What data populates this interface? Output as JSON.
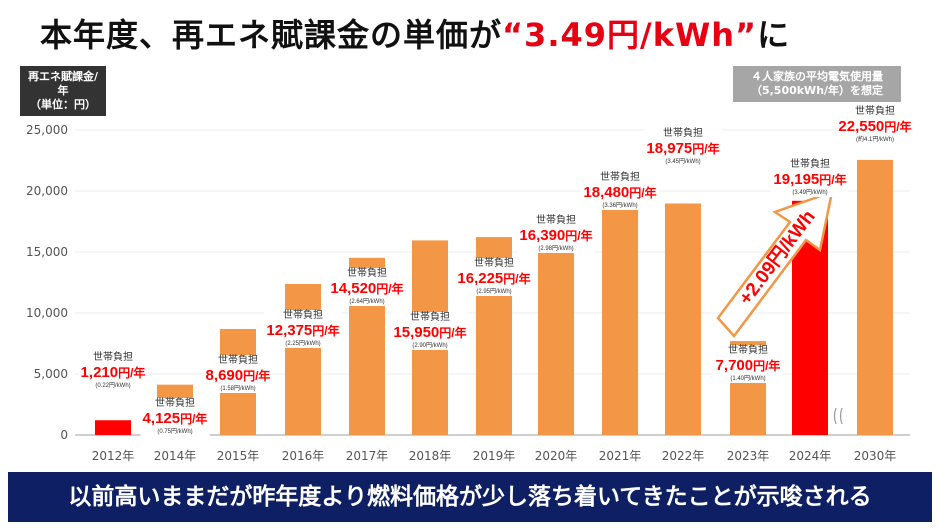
{
  "title": {
    "prefix": "本年度、再エネ賦課金の単価が",
    "highlight": "“3.49円/kWh”",
    "suffix": "に"
  },
  "unit_box": {
    "line1": "再エネ賦課金/年",
    "line2": "（単位：円）"
  },
  "assumption_box": {
    "line1": "４人家族の平均電気使用量",
    "line2": "（5,500kWh/年）を想定"
  },
  "arrow_label": "+2.09円/kWh",
  "footer": "以前高いままだが昨年度より燃料価格が少し落ち着いてきたことが示唆される",
  "colors": {
    "bar": "#f39646",
    "highlight_bar": "#ff0000",
    "label": "#ff0000",
    "footer_bg": "#0e1f63"
  },
  "chart_data": {
    "type": "bar",
    "categories": [
      "2012年",
      "2014年",
      "2015年",
      "2016年",
      "2017年",
      "2018年",
      "2019年",
      "2020年",
      "2021年",
      "2022年",
      "2023年",
      "2024年",
      "2030年"
    ],
    "values": [
      1210,
      4125,
      8690,
      12375,
      14520,
      15950,
      16225,
      16390,
      18480,
      18975,
      7700,
      19195,
      22550
    ],
    "value_labels": [
      "1,210",
      "4,125",
      "8,690",
      "12,375",
      "14,520",
      "15,950",
      "16,225",
      "16,390",
      "18,480",
      "18,975",
      "7,700",
      "19,195",
      "22,550"
    ],
    "value_unit": "円/年",
    "label_heading": "世帯負担",
    "rates": [
      "(0.22円/kWh)",
      "(0.75円/kWh)",
      "(1.58円/kWh)",
      "(2.25円/kWh)",
      "(2.64円/kWh)",
      "(2.90円/kWh)",
      "(2.95円/kWh)",
      "(2.98円/kWh)",
      "(3.36円/kWh)",
      "(3.45円/kWh)",
      "(1.40円/kWh)",
      "(3.49円/kWh)",
      "(約4.1円/kWh)"
    ],
    "highlighted": [
      "2012年",
      "2024年"
    ],
    "yticks": [
      0,
      5000,
      10000,
      15000,
      20000,
      25000
    ],
    "ytick_labels": [
      "0",
      "5,000",
      "10,000",
      "15,000",
      "20,000",
      "25,000"
    ],
    "ylim": [
      0,
      25000
    ],
    "ylabel": "再エネ賦課金/年（単位：円）",
    "grid": true
  }
}
